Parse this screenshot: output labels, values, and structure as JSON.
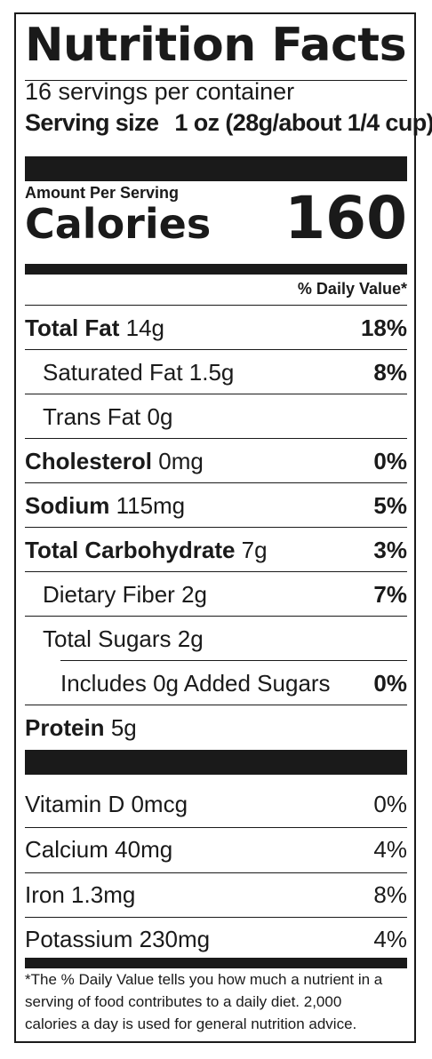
{
  "header": {
    "title": "Nutrition Facts",
    "servings_per_container": "16 servings per container",
    "serving_size_label": "Serving size",
    "serving_size_value": "1 oz (28g/about 1/4 cup)"
  },
  "calories": {
    "amount_label": "Amount Per Serving",
    "label": "Calories",
    "value": "160"
  },
  "daily_value_header": "% Daily Value*",
  "nutrients": [
    {
      "name": "Total Fat",
      "amount": "14g",
      "dv": "18%"
    },
    {
      "name": "Saturated Fat",
      "amount": "1.5g",
      "dv": "8%"
    },
    {
      "name": "Trans Fat",
      "amount": "0g",
      "dv": ""
    },
    {
      "name": "Cholesterol",
      "amount": "0mg",
      "dv": "0%"
    },
    {
      "name": "Sodium",
      "amount": "115mg",
      "dv": "5%"
    },
    {
      "name": "Total Carbohydrate",
      "amount": "7g",
      "dv": "3%"
    },
    {
      "name": "Dietary Fiber",
      "amount": "2g",
      "dv": "7%"
    },
    {
      "name": "Total Sugars",
      "amount": "2g",
      "dv": ""
    },
    {
      "name": "Includes 0g Added Sugars",
      "amount": "",
      "dv": "0%"
    },
    {
      "name": "Protein",
      "amount": "5g",
      "dv": ""
    }
  ],
  "vitamins": [
    {
      "name": "Vitamin D",
      "amount": "0mcg",
      "dv": "0%"
    },
    {
      "name": "Calcium",
      "amount": "40mg",
      "dv": "4%"
    },
    {
      "name": "Iron",
      "amount": "1.3mg",
      "dv": "8%"
    },
    {
      "name": "Potassium",
      "amount": "230mg",
      "dv": "4%"
    }
  ],
  "footnote": [
    "*The % Daily Value tells you how much a nutrient in a",
    "serving of food contributes to a daily diet. 2,000",
    "calories a day is used for general nutrition advice."
  ]
}
